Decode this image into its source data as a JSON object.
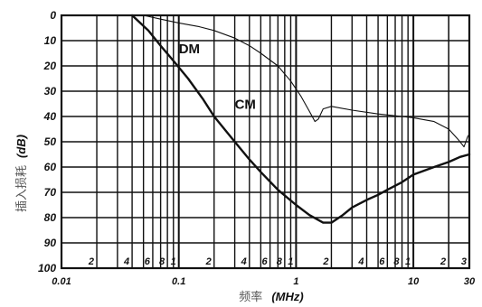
{
  "chart_data": {
    "type": "line",
    "xscale": "log",
    "xlim": [
      0.01,
      30
    ],
    "ylim": [
      100,
      0
    ],
    "y_inverted": true,
    "grid": true,
    "xlabel_cn": "频率",
    "xlabel_unit": "(MHz)",
    "ylabel_cn": "插入损耗",
    "ylabel_unit": "(dB)",
    "y_ticks": [
      "0",
      "10",
      "20",
      "30",
      "40",
      "50",
      "60",
      "70",
      "80",
      "90",
      "100"
    ],
    "x_major_ticks": [
      {
        "value": 0.01,
        "label": "0.01"
      },
      {
        "value": 0.1,
        "label": "0.1"
      },
      {
        "value": 1,
        "label": "1"
      },
      {
        "value": 10,
        "label": "10"
      },
      {
        "value": 30,
        "label": "30"
      }
    ],
    "x_minor_labels": [
      {
        "value": 0.02,
        "label": "2"
      },
      {
        "value": 0.04,
        "label": "4"
      },
      {
        "value": 0.06,
        "label": "6"
      },
      {
        "value": 0.08,
        "label": "8"
      },
      {
        "value": 0.1,
        "label": "1"
      },
      {
        "value": 0.2,
        "label": "2"
      },
      {
        "value": 0.4,
        "label": "4"
      },
      {
        "value": 0.6,
        "label": "6"
      },
      {
        "value": 0.8,
        "label": "8"
      },
      {
        "value": 1,
        "label": "1"
      },
      {
        "value": 2,
        "label": "2"
      },
      {
        "value": 4,
        "label": "4"
      },
      {
        "value": 6,
        "label": "6"
      },
      {
        "value": 8,
        "label": "8"
      },
      {
        "value": 10,
        "label": "1"
      },
      {
        "value": 20,
        "label": "2"
      },
      {
        "value": 30,
        "label": "3"
      }
    ],
    "series": [
      {
        "name": "DM",
        "label_at": {
          "x": 0.1,
          "y": 15
        },
        "points": [
          [
            0.05,
            0
          ],
          [
            0.07,
            1.5
          ],
          [
            0.1,
            3
          ],
          [
            0.15,
            4.5
          ],
          [
            0.2,
            6
          ],
          [
            0.3,
            9
          ],
          [
            0.4,
            12
          ],
          [
            0.5,
            15
          ],
          [
            0.7,
            20
          ],
          [
            0.9,
            26
          ],
          [
            1.1,
            32
          ],
          [
            1.3,
            38
          ],
          [
            1.45,
            42
          ],
          [
            1.55,
            41
          ],
          [
            1.7,
            37
          ],
          [
            2.0,
            36
          ],
          [
            3.0,
            37.5
          ],
          [
            5.0,
            39
          ],
          [
            8.0,
            40
          ],
          [
            10,
            40.5
          ],
          [
            15,
            42
          ],
          [
            20,
            45
          ],
          [
            24,
            49
          ],
          [
            26,
            51
          ],
          [
            27,
            52
          ],
          [
            28,
            50
          ],
          [
            29,
            48
          ],
          [
            30,
            47
          ]
        ]
      },
      {
        "name": "CM",
        "label_at": {
          "x": 0.3,
          "y": 37
        },
        "points": [
          [
            0.04,
            0
          ],
          [
            0.055,
            6
          ],
          [
            0.07,
            12
          ],
          [
            0.09,
            18
          ],
          [
            0.12,
            25
          ],
          [
            0.16,
            33
          ],
          [
            0.2,
            40
          ],
          [
            0.3,
            50
          ],
          [
            0.4,
            57
          ],
          [
            0.5,
            62
          ],
          [
            0.7,
            69
          ],
          [
            1.0,
            75
          ],
          [
            1.3,
            79
          ],
          [
            1.7,
            82
          ],
          [
            2.0,
            82
          ],
          [
            2.5,
            79
          ],
          [
            3.0,
            76
          ],
          [
            4.0,
            73
          ],
          [
            5.0,
            71
          ],
          [
            6.0,
            69
          ],
          [
            8.0,
            66
          ],
          [
            10,
            63
          ],
          [
            15,
            60
          ],
          [
            20,
            58
          ],
          [
            25,
            56
          ],
          [
            30,
            55
          ]
        ]
      }
    ]
  }
}
